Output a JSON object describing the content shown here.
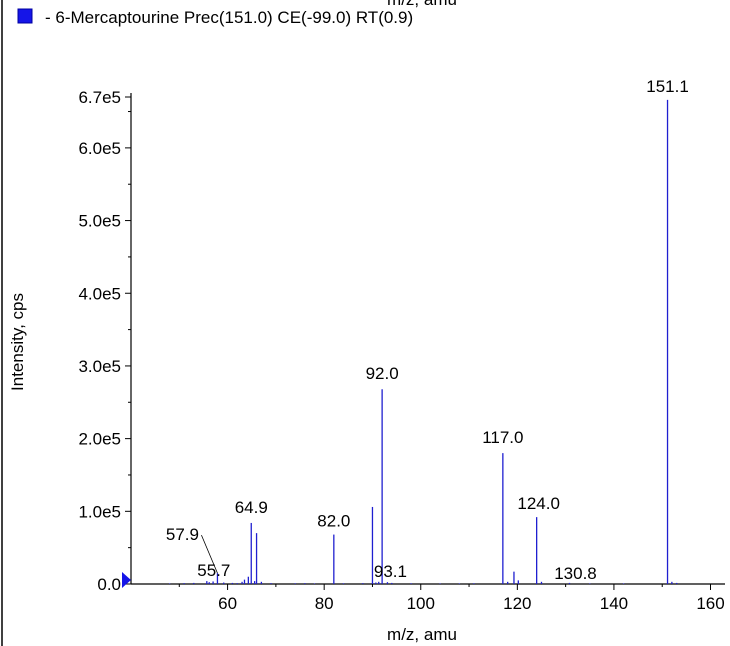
{
  "colors": {
    "series": "#1f1fd0",
    "axis": "#000000",
    "marker": "#1515e8"
  },
  "top_label": "m/z, amu",
  "legend": {
    "text": "- 6-Mercaptourine Prec(151.0) CE(-99.0) RT(0.9)",
    "marker_icon": "square-marker-icon"
  },
  "chart_data": {
    "type": "bar",
    "title": "- 6-Mercaptourine Prec(151.0) CE(-99.0) RT(0.9)",
    "xlabel": "m/z, amu",
    "ylabel": "Intensity, cps",
    "xlim": [
      40,
      163
    ],
    "ylim": [
      0,
      670000
    ],
    "grid": false,
    "x_ticks": [
      60,
      80,
      100,
      120,
      140,
      160
    ],
    "x_tick_labels": [
      "60",
      "80",
      "100",
      "120",
      "140",
      "160"
    ],
    "y_ticks": [
      0,
      100000,
      200000,
      300000,
      400000,
      500000,
      600000,
      670000
    ],
    "y_tick_labels": [
      "0.0",
      "1.0e5",
      "2.0e5",
      "3.0e5",
      "4.0e5",
      "5.0e5",
      "6.0e5",
      "6.7e5"
    ],
    "y_minor_ticks": [
      50000,
      150000,
      250000,
      350000,
      450000,
      550000,
      650000
    ],
    "series": [
      {
        "x": [
          48.0,
          51.0,
          53.0,
          55.7,
          56.2,
          57.0,
          57.9,
          59.2,
          61.0,
          62.0,
          63.0,
          63.5,
          64.3,
          64.9,
          65.6,
          66.0,
          67.0,
          69.0,
          74.0,
          76.0,
          78.0,
          82.0,
          84.0,
          88.0,
          90.0,
          90.7,
          91.3,
          92.0,
          93.1,
          94.0,
          98.0,
          104.0,
          108.0,
          111.0,
          117.0,
          118.0,
          119.3,
          120.2,
          124.0,
          125.0,
          130.8,
          135.0,
          142.0,
          151.1,
          152.0,
          153.0
        ],
        "values": [
          800,
          1200,
          1500,
          4000,
          2500,
          3500,
          15000,
          2000,
          1500,
          1200,
          3000,
          6000,
          10000,
          84000,
          4000,
          70000,
          3000,
          1200,
          1000,
          1200,
          800,
          68000,
          1000,
          1200,
          106000,
          2000,
          3000,
          268000,
          2500,
          1500,
          1000,
          800,
          800,
          1000,
          180000,
          3000,
          17000,
          5000,
          92000,
          3000,
          1500,
          800,
          800,
          666000,
          3000,
          1500
        ]
      }
    ],
    "annotations": [
      {
        "text": "57.9",
        "x": 57.9,
        "y": 15000
      },
      {
        "text": "55.7",
        "x": 55.7,
        "y": 4000
      },
      {
        "text": "64.9",
        "x": 64.9,
        "y": 84000
      },
      {
        "text": "82.0",
        "x": 82.0,
        "y": 68000
      },
      {
        "text": "92.0",
        "x": 92.0,
        "y": 268000
      },
      {
        "text": "93.1",
        "x": 93.1,
        "y": 2500
      },
      {
        "text": "117.0",
        "x": 117.0,
        "y": 180000
      },
      {
        "text": "124.0",
        "x": 124.0,
        "y": 92000
      },
      {
        "text": "130.8",
        "x": 130.8,
        "y": 1500
      },
      {
        "text": "151.1",
        "x": 151.1,
        "y": 666000
      }
    ]
  }
}
